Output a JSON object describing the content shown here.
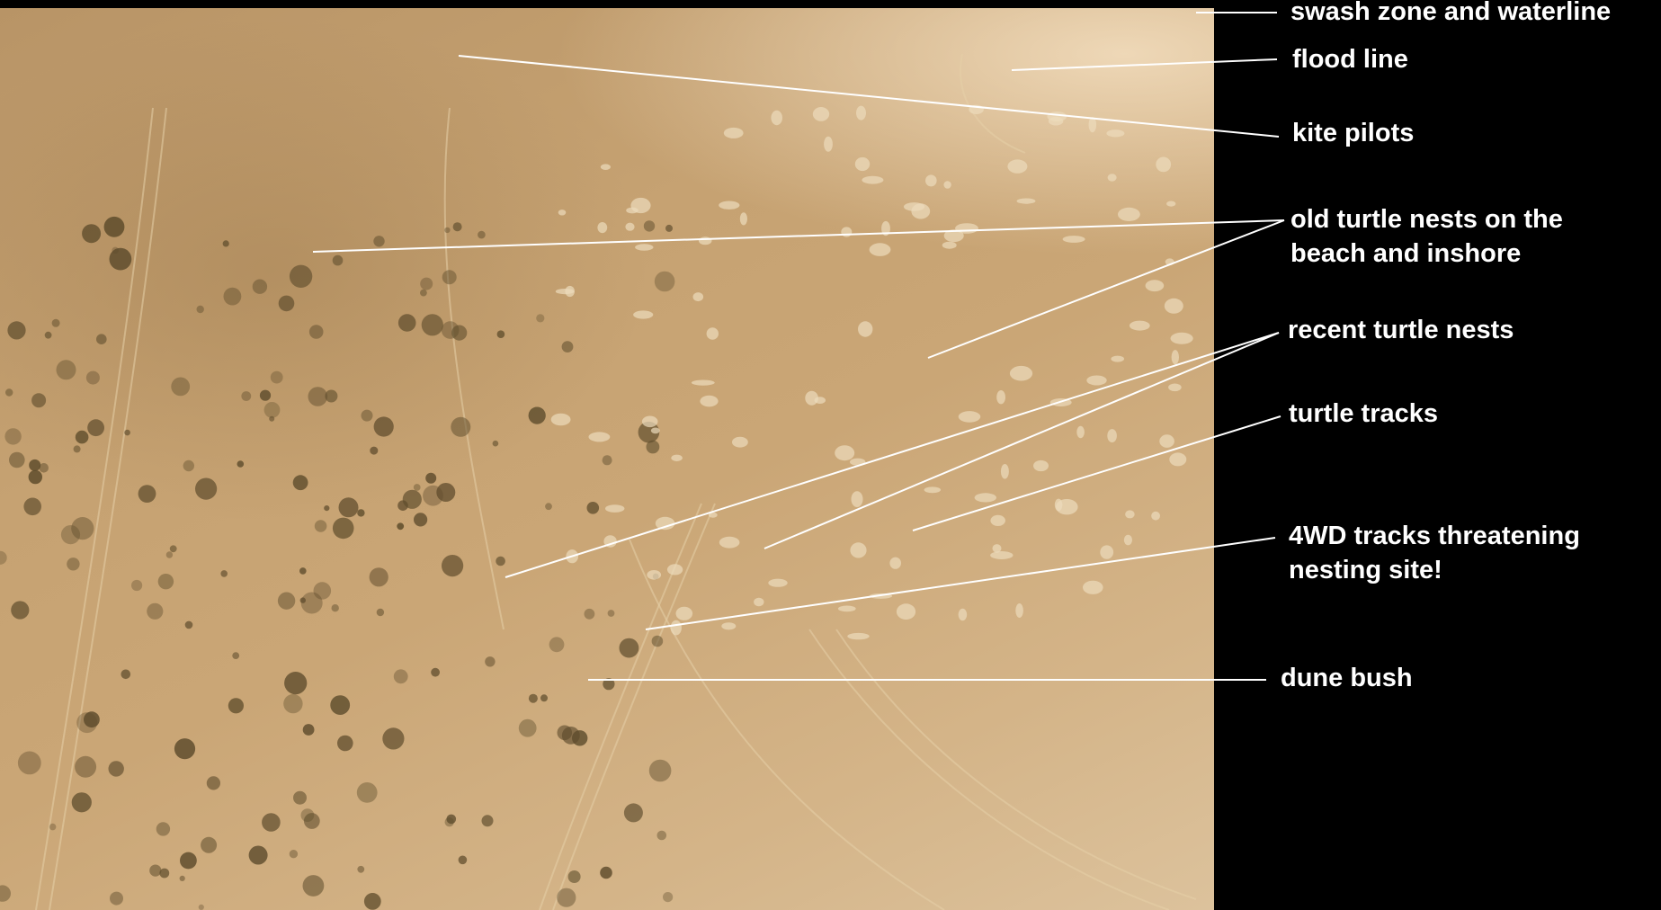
{
  "labels": {
    "swash": "swash zone and waterline",
    "flood": "flood line",
    "kite": "kite pilots",
    "old_nests_1": "old turtle nests on the",
    "old_nests_2": "beach and inshore",
    "recent_nests": "recent turtle nests",
    "tracks": "turtle tracks",
    "fourwd_1": "4WD tracks threatening",
    "fourwd_2": "nesting site!",
    "bush": "dune bush"
  },
  "colors": {
    "sand": "#c6a272",
    "wet_sand": "#e8d6b8",
    "bush": "#5a4a2a",
    "background": "#000000",
    "label": "#ffffff"
  }
}
